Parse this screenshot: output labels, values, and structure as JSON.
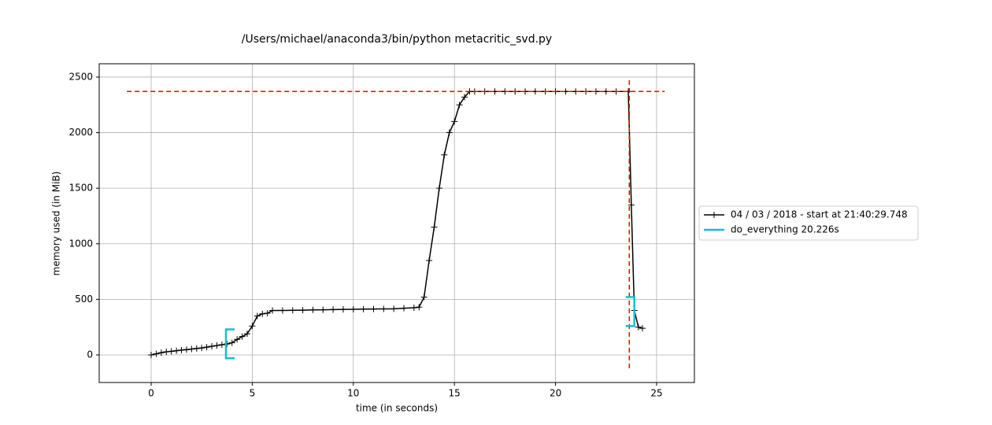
{
  "chart_data": {
    "type": "line",
    "title": "/Users/michael/anaconda3/bin/python metacritic_svd.py",
    "xlabel": "time (in seconds)",
    "ylabel": "memory used (in MiB)",
    "x": [
      0,
      0.25,
      0.5,
      0.75,
      1.0,
      1.25,
      1.5,
      1.75,
      2.0,
      2.25,
      2.5,
      2.75,
      3.0,
      3.25,
      3.5,
      3.75,
      4.0,
      4.25,
      4.5,
      4.75,
      5.0,
      5.25,
      5.5,
      5.75,
      6.0,
      6.5,
      7.0,
      7.5,
      8.0,
      8.5,
      9.0,
      9.5,
      10.0,
      10.5,
      11.0,
      11.5,
      12.0,
      12.5,
      13.0,
      13.25,
      13.5,
      13.75,
      14.0,
      14.25,
      14.5,
      14.75,
      15.0,
      15.25,
      15.5,
      15.75,
      16.0,
      16.5,
      17.0,
      17.5,
      18.0,
      18.5,
      19.0,
      19.5,
      20.0,
      20.5,
      21.0,
      21.5,
      22.0,
      22.5,
      23.0,
      23.6,
      23.75,
      23.9,
      24.1,
      24.3
    ],
    "series": [
      {
        "name": "04 / 03 / 2018 - start at 21:40:29.748",
        "color": "#000000",
        "values": [
          0,
          10,
          20,
          28,
          33,
          38,
          43,
          48,
          53,
          58,
          63,
          70,
          78,
          85,
          92,
          98,
          110,
          140,
          165,
          190,
          260,
          350,
          370,
          375,
          400,
          400,
          402,
          403,
          405,
          406,
          408,
          410,
          411,
          412,
          413,
          414,
          415,
          420,
          425,
          430,
          520,
          850,
          1150,
          1500,
          1800,
          2000,
          2100,
          2250,
          2320,
          2370,
          2370,
          2370,
          2370,
          2370,
          2370,
          2370,
          2370,
          2370,
          2370,
          2370,
          2370,
          2370,
          2370,
          2370,
          2370,
          2370,
          1350,
          400,
          250,
          240
        ]
      }
    ],
    "brackets": {
      "name": "do_everything 20.226s",
      "color": "#17becf",
      "items": [
        {
          "x": 3.7,
          "ylim": [
            -30,
            230
          ],
          "side": "left"
        },
        {
          "x": 23.9,
          "ylim": [
            260,
            520
          ],
          "side": "right"
        }
      ]
    },
    "hlines": [
      {
        "y": 2370,
        "xlim": [
          -1.2,
          25.4
        ],
        "color": "#ff0000"
      }
    ],
    "vlines": [
      {
        "x": 23.65,
        "ylim": [
          -120,
          2500
        ],
        "color": "#ff0000"
      }
    ],
    "xlim": [
      -2.57,
      26.87
    ],
    "ylim": [
      -248,
      2620
    ],
    "xticks": [
      0,
      5,
      10,
      15,
      20,
      25
    ],
    "yticks": [
      0,
      500,
      1000,
      1500,
      2000,
      2500
    ],
    "grid": true,
    "legend": "outside-right"
  }
}
